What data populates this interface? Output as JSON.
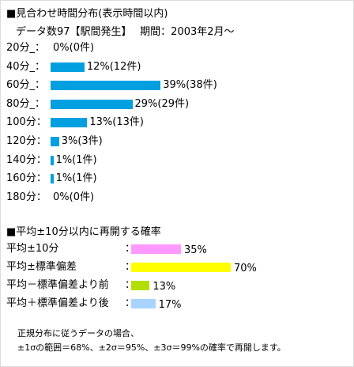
{
  "section1": {
    "title": "■見合わせ時間分布(表示時間以内)",
    "subtitle": "データ数97【駅間発生】　 期間：2003年2月～"
  },
  "section2": {
    "title": "■平均±10分以内に再開する確率"
  },
  "footer": {
    "line1": "正規分布に従うデータの場合、",
    "line2": "±1σの範囲＝68%、±2σ＝95%、±3σ＝99%の確率で再開します。"
  },
  "colors": {
    "dist_bar": "#009fe0",
    "prob_bars": [
      "#ff99ff",
      "#ffff00",
      "#b3df00",
      "#a9d4ff"
    ]
  },
  "chart_data": [
    {
      "type": "bar",
      "orientation": "horizontal",
      "categories": [
        "20分",
        "40分",
        "60分",
        "80分",
        "100分",
        "120分",
        "140分",
        "160分",
        "180分"
      ],
      "category_labels": [
        "20分_：",
        "40分_：",
        "60分_：",
        "80分_：",
        "100分：",
        "120分：",
        "140分：",
        "160分：",
        "180分："
      ],
      "values": [
        0,
        12,
        39,
        29,
        13,
        3,
        1,
        1,
        0
      ],
      "counts": [
        0,
        12,
        38,
        29,
        13,
        3,
        1,
        1,
        0
      ],
      "value_labels": [
        "0%(0件)",
        "12%(12件)",
        "39%(38件)",
        "29%(29件)",
        "13%(13件)",
        "3%(3件)",
        "1%(1件)",
        "1%(1件)",
        "0%(0件)"
      ],
      "unit": "%"
    },
    {
      "type": "bar",
      "orientation": "horizontal",
      "categories": [
        "平均±10分",
        "平均±標準偏差",
        "平均－標準偏差より前",
        "平均＋標準偏差より後"
      ],
      "category_labels": [
        "平均±10分",
        "平均±標準偏差",
        "平均－標準偏差より前",
        "平均＋標準偏差より後"
      ],
      "values": [
        35,
        70,
        13,
        17
      ],
      "value_labels": [
        "35%",
        "70%",
        "13%",
        "17%"
      ],
      "unit": "%"
    }
  ]
}
